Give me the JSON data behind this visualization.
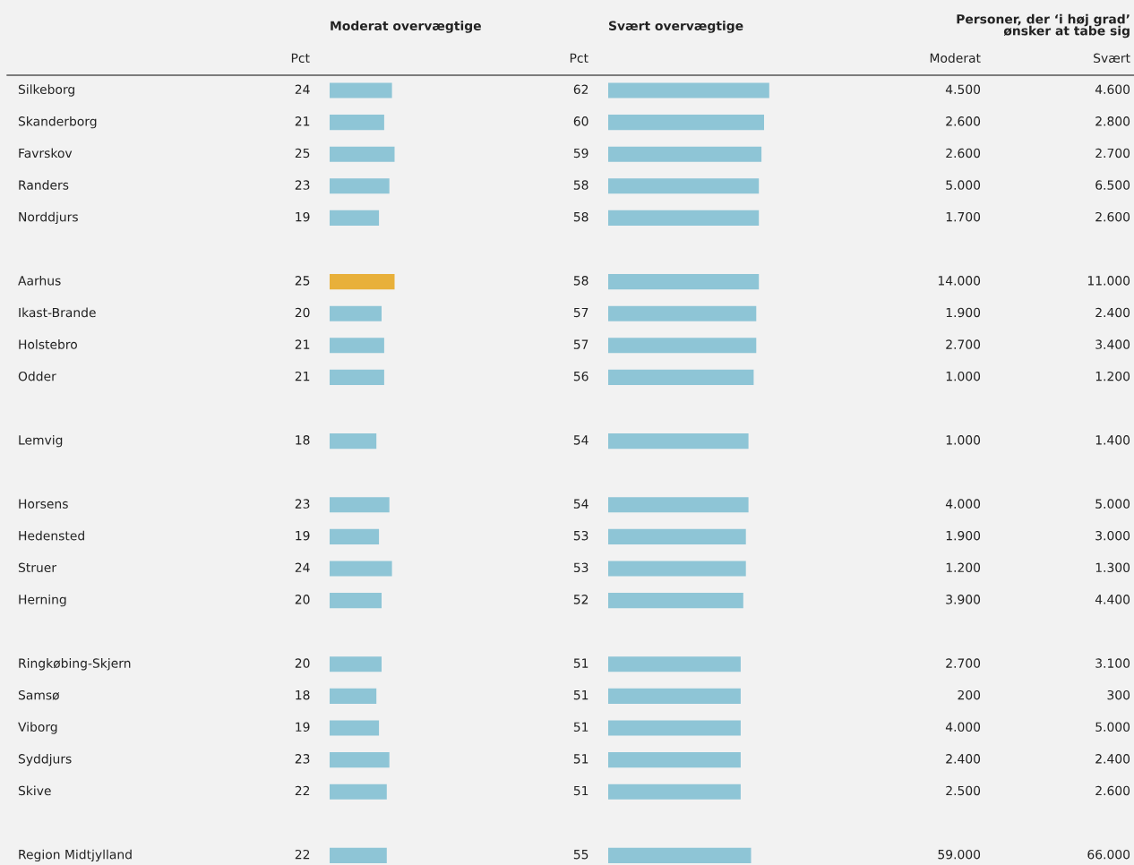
{
  "chart_data": [
    {
      "type": "bar",
      "orientation": "horizontal",
      "title": "Moderat overvægtige",
      "xlabel": "Pct",
      "tick_labels": "y",
      "data_labels": true,
      "categories": [
        "Silkeborg",
        "Skanderborg",
        "Favrskov",
        "Randers",
        "Norddjurs",
        null,
        "Aarhus",
        "Ikast-Brande",
        "Holstebro",
        "Odder",
        null,
        "Lemvig",
        null,
        "Horsens",
        "Hedensted",
        "Struer",
        "Herning",
        null,
        "Ringkøbing-Skjern",
        "Samsø",
        "Viborg",
        "Syddjurs",
        "Skive",
        null,
        "Region Midtjylland"
      ],
      "values": [
        24,
        21,
        25,
        23,
        19,
        null,
        25,
        20,
        21,
        21,
        null,
        18,
        null,
        23,
        19,
        24,
        20,
        null,
        20,
        18,
        19,
        23,
        22,
        null,
        22
      ],
      "colors": [
        "#8ec5d6",
        "#8ec5d6",
        "#8ec5d6",
        "#8ec5d6",
        "#8ec5d6",
        null,
        "#e8b03a",
        "#8ec5d6",
        "#8ec5d6",
        "#8ec5d6",
        null,
        "#8ec5d6",
        null,
        "#8ec5d6",
        "#8ec5d6",
        "#8ec5d6",
        "#8ec5d6",
        null,
        "#8ec5d6",
        "#8ec5d6",
        "#8ec5d6",
        "#8ec5d6",
        "#8ec5d6",
        null,
        "#8ec5d6"
      ]
    },
    {
      "type": "bar",
      "orientation": "horizontal",
      "title": "Svært overvægtige",
      "xlabel": "Pct",
      "tick_labels": false,
      "data_labels": true,
      "values": [
        62,
        60,
        59,
        58,
        58,
        null,
        58,
        57,
        57,
        56,
        null,
        54,
        null,
        54,
        53,
        53,
        52,
        null,
        51,
        51,
        51,
        51,
        51,
        null,
        55
      ],
      "colors": [
        "#8ec5d6",
        "#8ec5d6",
        "#8ec5d6",
        "#8ec5d6",
        "#8ec5d6",
        null,
        "#8ec5d6",
        "#8ec5d6",
        "#8ec5d6",
        "#8ec5d6",
        null,
        "#8ec5d6",
        null,
        "#8ec5d6",
        "#8ec5d6",
        "#8ec5d6",
        "#8ec5d6",
        null,
        "#8ec5d6",
        "#8ec5d6",
        "#8ec5d6",
        "#8ec5d6",
        "#8ec5d6",
        null,
        "#8ec5d6"
      ]
    },
    {
      "type": "other",
      "title": "Personer, der ‘i høj grad’\nønsker at tabe sig",
      "categories": [
        "Moderat",
        "Svært"
      ],
      "cell_labels": [
        [
          "4.500",
          "4.600"
        ],
        [
          "2.600",
          "2.800"
        ],
        [
          "2.600",
          "2.700"
        ],
        [
          "5.000",
          "6.500"
        ],
        [
          "1.700",
          "2.600"
        ],
        [
          null,
          null
        ],
        [
          "14.000",
          "11.000"
        ],
        [
          "1.900",
          "2.400"
        ],
        [
          "2.700",
          "3.400"
        ],
        [
          "1.000",
          "1.200"
        ],
        [
          null,
          null
        ],
        [
          "1.000",
          "1.400"
        ],
        [
          null,
          null
        ],
        [
          "4.000",
          "5.000"
        ],
        [
          "1.900",
          "3.000"
        ],
        [
          "1.200",
          "1.300"
        ],
        [
          "3.900",
          "4.400"
        ],
        [
          null,
          null
        ],
        [
          "2.700",
          "3.100"
        ],
        [
          "200",
          "300"
        ],
        [
          "4.000",
          "5.000"
        ],
        [
          "2.400",
          "2.400"
        ],
        [
          "2.500",
          "2.600"
        ],
        [
          null,
          null
        ],
        [
          "59.000",
          "66.000"
        ]
      ]
    }
  ]
}
